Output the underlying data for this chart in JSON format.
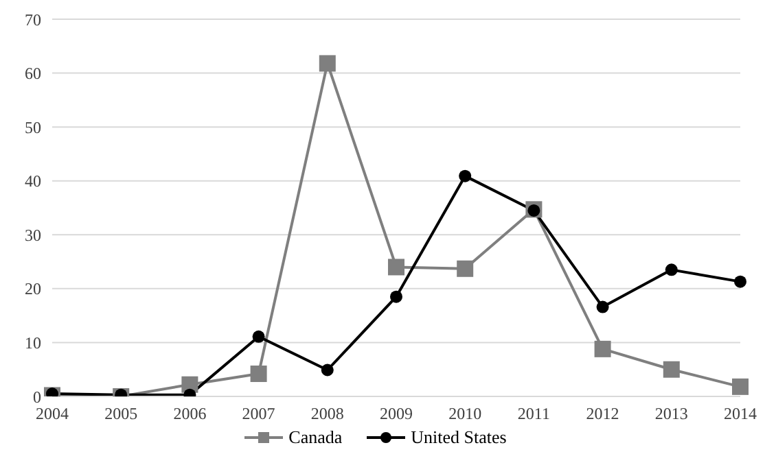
{
  "chart_data": {
    "type": "line",
    "categories": [
      "2004",
      "2005",
      "2006",
      "2007",
      "2008",
      "2009",
      "2010",
      "2011",
      "2012",
      "2013",
      "2014"
    ],
    "series": [
      {
        "name": "Canada",
        "color": "#7f7f7f",
        "marker": "square",
        "values": [
          0.2,
          0,
          2.2,
          4.2,
          61.8,
          24,
          23.7,
          34.7,
          8.8,
          5,
          1.8
        ]
      },
      {
        "name": "United States",
        "color": "#000000",
        "marker": "circle",
        "values": [
          0.5,
          0.3,
          0.3,
          11.1,
          4.9,
          18.5,
          40.9,
          34.5,
          16.6,
          23.5,
          21.3
        ]
      }
    ],
    "ylim": [
      0,
      70
    ],
    "yticks": [
      0,
      10,
      20,
      30,
      40,
      50,
      60,
      70
    ],
    "grid": "y",
    "legend": "bottom"
  }
}
